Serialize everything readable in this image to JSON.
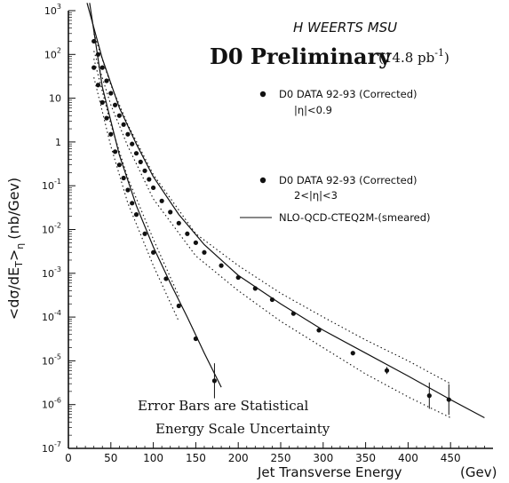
{
  "chart_data": {
    "type": "scatter",
    "title": "D0 Preliminary",
    "title_suffix": "(14.8 pb",
    "title_sup": "-1",
    "title_close": ")",
    "annotation_author": "H WEERTS   MSU",
    "xlabel": "Jet Transverse Energy",
    "xunit": "(Gev)",
    "ylabel": "<dσ/dE",
    "ylabel_sub_t": "T",
    "ylabel_close": ">",
    "ylabel_sub_eta": "η",
    "ylabel_unit": "(nb/Gev)",
    "xlim": [
      0,
      500
    ],
    "ylim_log10": [
      -7,
      3
    ],
    "log_y": true,
    "grid": false,
    "x_ticks": [
      0,
      50,
      100,
      150,
      200,
      250,
      300,
      350,
      400,
      450
    ],
    "x_tick_labels": [
      "0",
      "50",
      "100",
      "150",
      "200",
      "250",
      "300",
      "350",
      "400",
      "450"
    ],
    "y_tick_labels": [
      {
        "base": "10",
        "exp": "3",
        "v": 1000
      },
      {
        "base": "10",
        "exp": "2",
        "v": 100
      },
      {
        "base": "10",
        "exp": "",
        "v": 10
      },
      {
        "base": "1",
        "exp": "",
        "v": 1
      },
      {
        "base": "10",
        "exp": "-1",
        "v": 0.1
      },
      {
        "base": "10",
        "exp": "-2",
        "v": 0.01
      },
      {
        "base": "10",
        "exp": "-3",
        "v": 0.001
      },
      {
        "base": "10",
        "exp": "-4",
        "v": 0.0001
      },
      {
        "base": "10",
        "exp": "-5",
        "v": 1e-05
      },
      {
        "base": "10",
        "exp": "-6",
        "v": 1e-06
      },
      {
        "base": "10",
        "exp": "-7",
        "v": 1e-07
      }
    ],
    "legend": [
      {
        "label": "D0 DATA 92-93 (Corrected)",
        "sublabel": "|η|<0.9",
        "marker": "dot"
      },
      {
        "label": "D0 DATA 92-93 (Corrected)",
        "sublabel": "2<|η|<3",
        "marker": "dot"
      },
      {
        "label": "NLO-QCD-CTEQ2M-(smeared)",
        "sublabel": "",
        "marker": "line"
      }
    ],
    "notes": [
      "Error Bars are Statistical",
      "Energy Scale Uncertainty"
    ],
    "series": [
      {
        "name": "central",
        "points": [
          {
            "x": 30,
            "y": 200
          },
          {
            "x": 35,
            "y": 100
          },
          {
            "x": 40,
            "y": 50
          },
          {
            "x": 45,
            "y": 25
          },
          {
            "x": 50,
            "y": 13
          },
          {
            "x": 55,
            "y": 7
          },
          {
            "x": 60,
            "y": 4
          },
          {
            "x": 65,
            "y": 2.5
          },
          {
            "x": 70,
            "y": 1.5
          },
          {
            "x": 75,
            "y": 0.9
          },
          {
            "x": 80,
            "y": 0.55
          },
          {
            "x": 85,
            "y": 0.35
          },
          {
            "x": 90,
            "y": 0.22
          },
          {
            "x": 95,
            "y": 0.14
          },
          {
            "x": 100,
            "y": 0.09
          },
          {
            "x": 110,
            "y": 0.045
          },
          {
            "x": 120,
            "y": 0.025
          },
          {
            "x": 130,
            "y": 0.014
          },
          {
            "x": 140,
            "y": 0.008
          },
          {
            "x": 150,
            "y": 0.005
          },
          {
            "x": 160,
            "y": 0.003
          },
          {
            "x": 180,
            "y": 0.0015
          },
          {
            "x": 200,
            "y": 0.0008
          },
          {
            "x": 220,
            "y": 0.00045
          },
          {
            "x": 240,
            "y": 0.00025
          },
          {
            "x": 265,
            "y": 0.00012
          },
          {
            "x": 295,
            "y": 5e-05
          },
          {
            "x": 335,
            "y": 1.5e-05
          },
          {
            "x": 375,
            "y": 6e-06
          },
          {
            "x": 425,
            "y": 1.6e-06
          },
          {
            "x": 448,
            "y": 1.3e-06
          }
        ],
        "errors_log10": {
          "375": 0.08,
          "425": 0.3,
          "448": 0.35
        }
      },
      {
        "name": "forward",
        "points": [
          {
            "x": 30,
            "y": 50
          },
          {
            "x": 35,
            "y": 20
          },
          {
            "x": 40,
            "y": 8
          },
          {
            "x": 45,
            "y": 3.5
          },
          {
            "x": 50,
            "y": 1.5
          },
          {
            "x": 55,
            "y": 0.6
          },
          {
            "x": 60,
            "y": 0.3
          },
          {
            "x": 65,
            "y": 0.15
          },
          {
            "x": 70,
            "y": 0.08
          },
          {
            "x": 75,
            "y": 0.04
          },
          {
            "x": 80,
            "y": 0.022
          },
          {
            "x": 90,
            "y": 0.008
          },
          {
            "x": 100,
            "y": 0.003
          },
          {
            "x": 115,
            "y": 0.00075
          },
          {
            "x": 130,
            "y": 0.00018
          },
          {
            "x": 150,
            "y": 3.2e-05
          },
          {
            "x": 172,
            "y": 3.5e-06
          }
        ],
        "errors_log10": {
          "172": 0.4
        }
      }
    ],
    "curves": [
      {
        "name": "NLO central",
        "style": "solid",
        "points": [
          [
            22,
            1500
          ],
          [
            40,
            80
          ],
          [
            60,
            6
          ],
          [
            80,
            0.9
          ],
          [
            100,
            0.16
          ],
          [
            130,
            0.022
          ],
          [
            160,
            0.0045
          ],
          [
            200,
            0.0009
          ],
          [
            250,
            0.0002
          ],
          [
            300,
            5e-05
          ],
          [
            350,
            1.5e-05
          ],
          [
            400,
            4.5e-06
          ],
          [
            450,
            1.3e-06
          ],
          [
            490,
            5e-07
          ]
        ]
      },
      {
        "name": "NLO forward",
        "style": "solid",
        "points": [
          [
            25,
            1500
          ],
          [
            40,
            18
          ],
          [
            60,
            0.5
          ],
          [
            80,
            0.035
          ],
          [
            100,
            0.004
          ],
          [
            120,
            0.0006
          ],
          [
            140,
            0.0001
          ],
          [
            160,
            1.5e-05
          ],
          [
            180,
            2.5e-06
          ]
        ]
      },
      {
        "name": "energy scale band upper (central)",
        "style": "dotted",
        "points": [
          [
            30,
            300
          ],
          [
            50,
            20
          ],
          [
            70,
            2.5
          ],
          [
            100,
            0.18
          ],
          [
            150,
            0.008
          ],
          [
            200,
            0.0015
          ],
          [
            250,
            0.00035
          ],
          [
            300,
            0.0001
          ],
          [
            350,
            3e-05
          ],
          [
            400,
            1e-05
          ],
          [
            450,
            3e-06
          ]
        ]
      },
      {
        "name": "energy scale band lower (central)",
        "style": "dotted",
        "points": [
          [
            30,
            120
          ],
          [
            50,
            7
          ],
          [
            70,
            0.8
          ],
          [
            100,
            0.05
          ],
          [
            150,
            0.0025
          ],
          [
            200,
            0.0004
          ],
          [
            250,
            8e-05
          ],
          [
            300,
            2e-05
          ],
          [
            350,
            5e-06
          ],
          [
            400,
            1.5e-06
          ],
          [
            450,
            5e-07
          ]
        ]
      },
      {
        "name": "energy scale band upper (forward)",
        "style": "dotted",
        "points": [
          [
            30,
            80
          ],
          [
            50,
            2.5
          ],
          [
            70,
            0.15
          ],
          [
            100,
            0.006
          ],
          [
            130,
            0.0003
          ]
        ]
      },
      {
        "name": "energy scale band lower (forward)",
        "style": "dotted",
        "points": [
          [
            30,
            30
          ],
          [
            50,
            0.8
          ],
          [
            70,
            0.04
          ],
          [
            100,
            0.0015
          ],
          [
            130,
            8e-05
          ]
        ]
      }
    ]
  }
}
